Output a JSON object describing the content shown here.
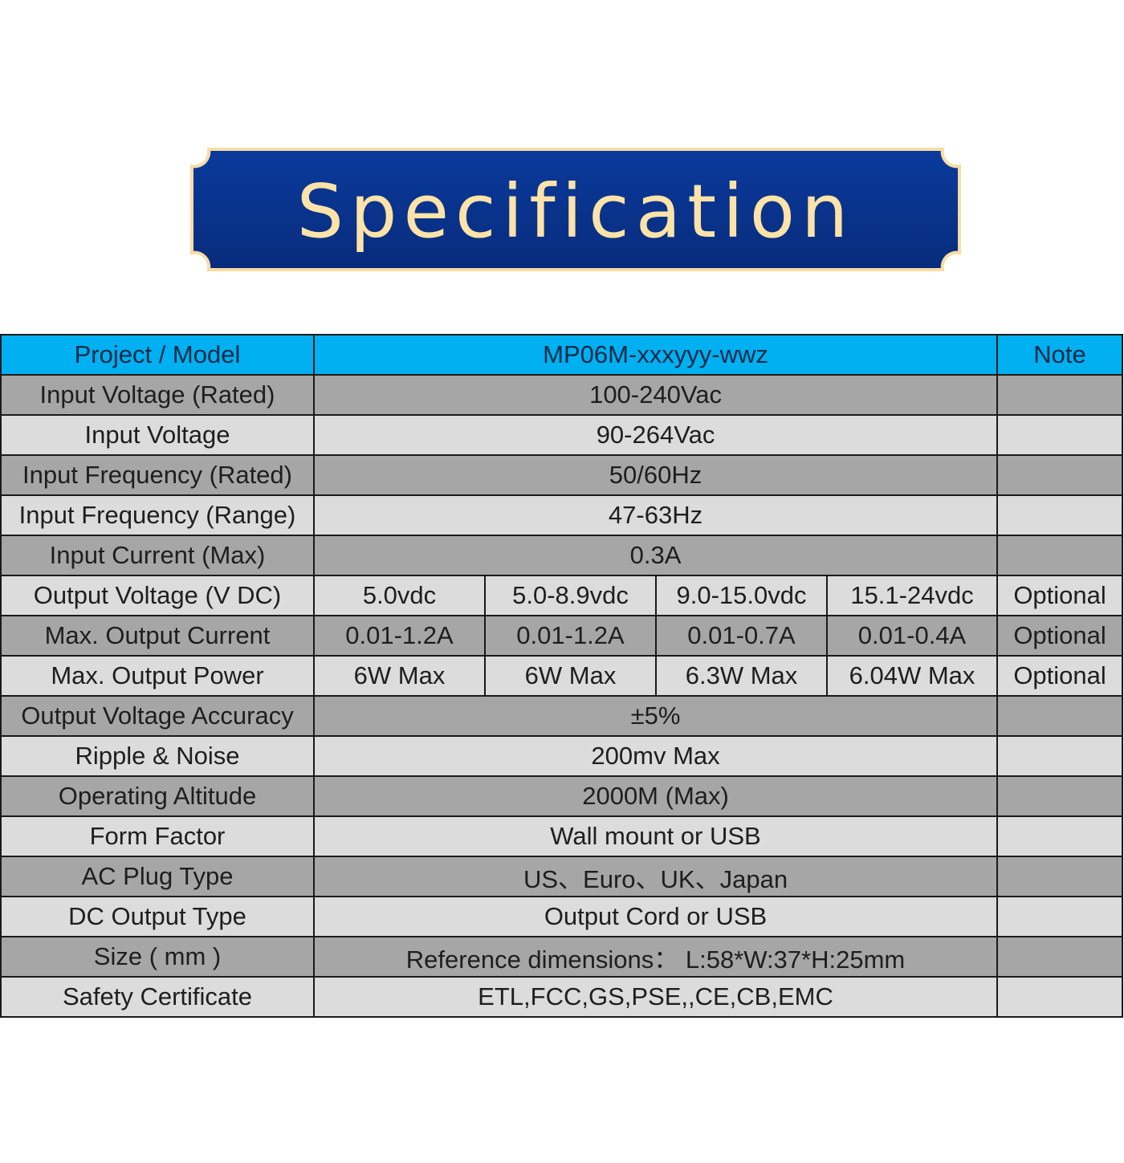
{
  "banner": {
    "title": "Specification",
    "fill_color": "#0a3591",
    "border_color": "#f8dca4",
    "text_color": "#fde3a7"
  },
  "table": {
    "header_color": "#00b0f0",
    "dark_row_color": "#a6a6a6",
    "light_row_color": "#dcdcdc",
    "header": {
      "label": "Project / Model",
      "value": "MP06M-xxxyyy-wwz",
      "note": "Note"
    },
    "rows": [
      {
        "label": "Input Voltage (Rated)",
        "value": "100-240Vac",
        "note": ""
      },
      {
        "label": "Input Voltage",
        "value": "90-264Vac",
        "note": ""
      },
      {
        "label": "Input Frequency (Rated)",
        "value": "50/60Hz",
        "note": ""
      },
      {
        "label": "Input Frequency (Range)",
        "value": "47-63Hz",
        "note": ""
      },
      {
        "label": "Input Current (Max)",
        "value": "0.3A",
        "note": ""
      },
      {
        "label": "Output Voltage (V DC)",
        "values": [
          "5.0vdc",
          "5.0-8.9vdc",
          "9.0-15.0vdc",
          "15.1-24vdc"
        ],
        "note": "Optional"
      },
      {
        "label": "Max. Output Current",
        "values": [
          "0.01-1.2A",
          "0.01-1.2A",
          "0.01-0.7A",
          "0.01-0.4A"
        ],
        "note": "Optional"
      },
      {
        "label": "Max. Output Power",
        "values": [
          "6W Max",
          "6W Max",
          "6.3W Max",
          "6.04W Max"
        ],
        "note": "Optional"
      },
      {
        "label": "Output Voltage Accuracy",
        "value": "±5%",
        "note": ""
      },
      {
        "label": "Ripple & Noise",
        "value": "200mv Max",
        "note": ""
      },
      {
        "label": "Operating Altitude",
        "value": "2000M (Max)",
        "note": ""
      },
      {
        "label": "Form Factor",
        "value": "Wall mount or USB",
        "note": ""
      },
      {
        "label": "AC Plug Type",
        "value": "US、Euro、UK、Japan",
        "note": ""
      },
      {
        "label": "DC Output Type",
        "value": "Output Cord or USB",
        "note": ""
      },
      {
        "label": "Size ( mm )",
        "value": "Reference dimensions：  L:58*W:37*H:25mm",
        "note": ""
      },
      {
        "label": "Safety Certificate",
        "value": "ETL,FCC,GS,PSE,,CE,CB,EMC",
        "note": ""
      }
    ]
  }
}
